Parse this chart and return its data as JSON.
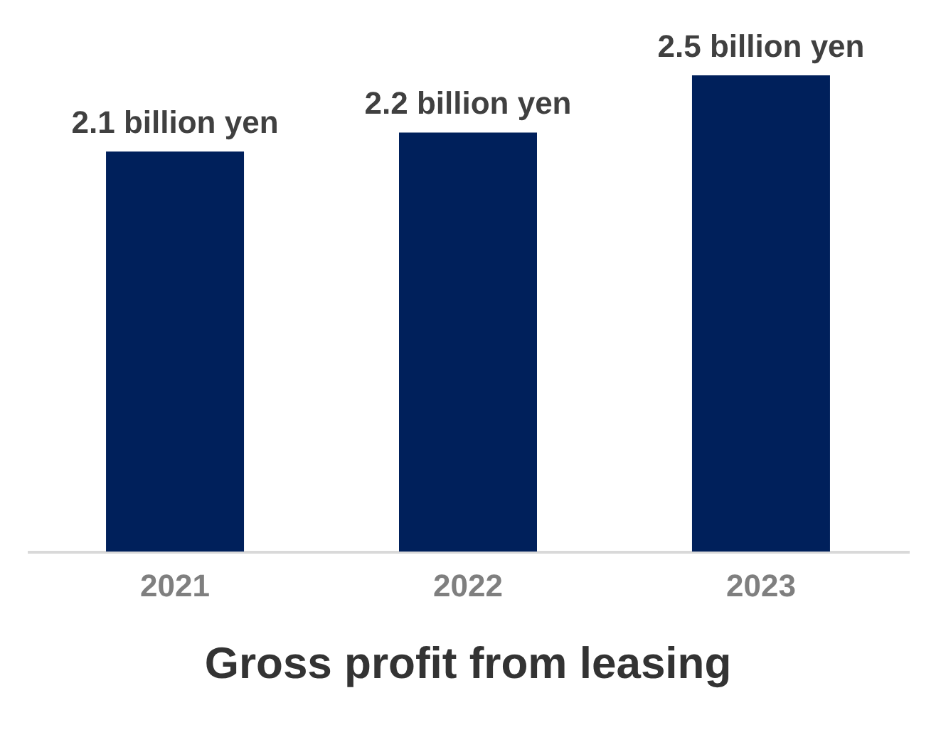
{
  "chart_data": {
    "type": "bar",
    "title": "Gross profit from leasing",
    "categories": [
      "2021",
      "2022",
      "2023"
    ],
    "values": [
      2.1,
      2.2,
      2.5
    ],
    "value_labels": [
      "2.1 billion yen",
      "2.2 billion yen",
      "2.5 billion yen"
    ],
    "color": "#00205b",
    "grid": false,
    "tick_labels": "x"
  }
}
